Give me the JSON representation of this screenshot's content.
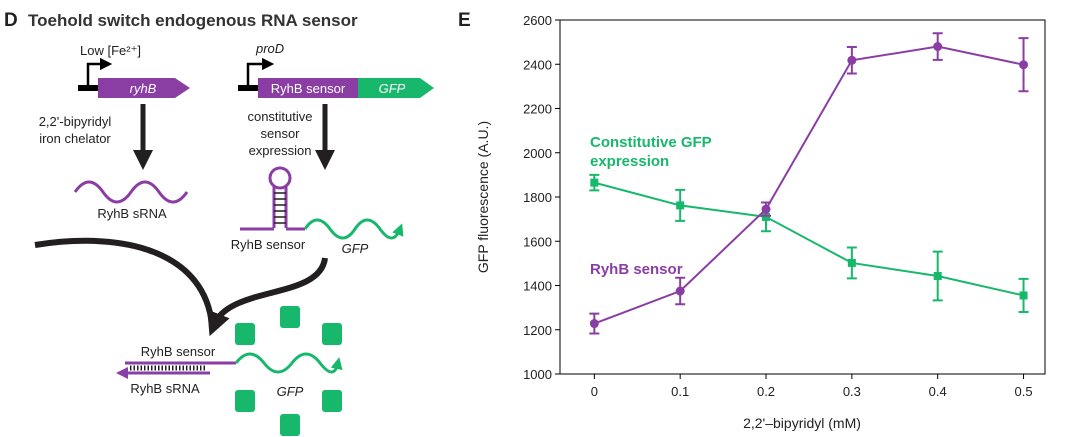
{
  "diagram": {
    "panel_label": "D",
    "title": "Toehold switch endogenous RNA sensor",
    "promoter_1": "Low [Fe²⁺]",
    "gene_1": "ryhB",
    "promoter_2": "proD",
    "gene_2a": "RyhB sensor",
    "gene_2b": "GFP",
    "step_1": [
      "2,2'-bipyridyl",
      "iron chelator"
    ],
    "step_2": [
      "constitutive",
      "sensor",
      "expression"
    ],
    "srna_label": "RyhB sRNA",
    "sensor_label": "RyhB sensor",
    "sensor_gfp_label": "GFP",
    "complex_sensor_label": "RyhB sensor",
    "complex_srna_label": "RyhB sRNA",
    "complex_gfp_label": "GFP"
  },
  "chart_data": {
    "type": "line",
    "panel_label": "E",
    "xlabel": "2,2'–bipyridyl (mM)",
    "ylabel": "GFP fluorescence (A.U.)",
    "x": [
      0,
      0.1,
      0.2,
      0.3,
      0.4,
      0.5
    ],
    "series": [
      {
        "name": "Constitutive GFP expression",
        "color": "#17b86b",
        "marker": "square",
        "values": [
          1865,
          1762,
          1710,
          1502,
          1443,
          1355
        ],
        "errors": [
          35,
          70,
          65,
          70,
          110,
          75
        ]
      },
      {
        "name": "RyhB sensor",
        "color": "#8a3ea4",
        "marker": "circle",
        "values": [
          1228,
          1375,
          1745,
          2418,
          2480,
          2398
        ],
        "errors": [
          45,
          60,
          30,
          60,
          60,
          120
        ]
      }
    ],
    "xlim": [
      -0.04,
      0.525
    ],
    "xticks": [
      0,
      0.1,
      0.2,
      0.3,
      0.4,
      0.5
    ],
    "ylim": [
      1000,
      2600
    ],
    "yticks": [
      1000,
      1200,
      1400,
      1600,
      1800,
      2000,
      2200,
      2400,
      2600
    ]
  }
}
